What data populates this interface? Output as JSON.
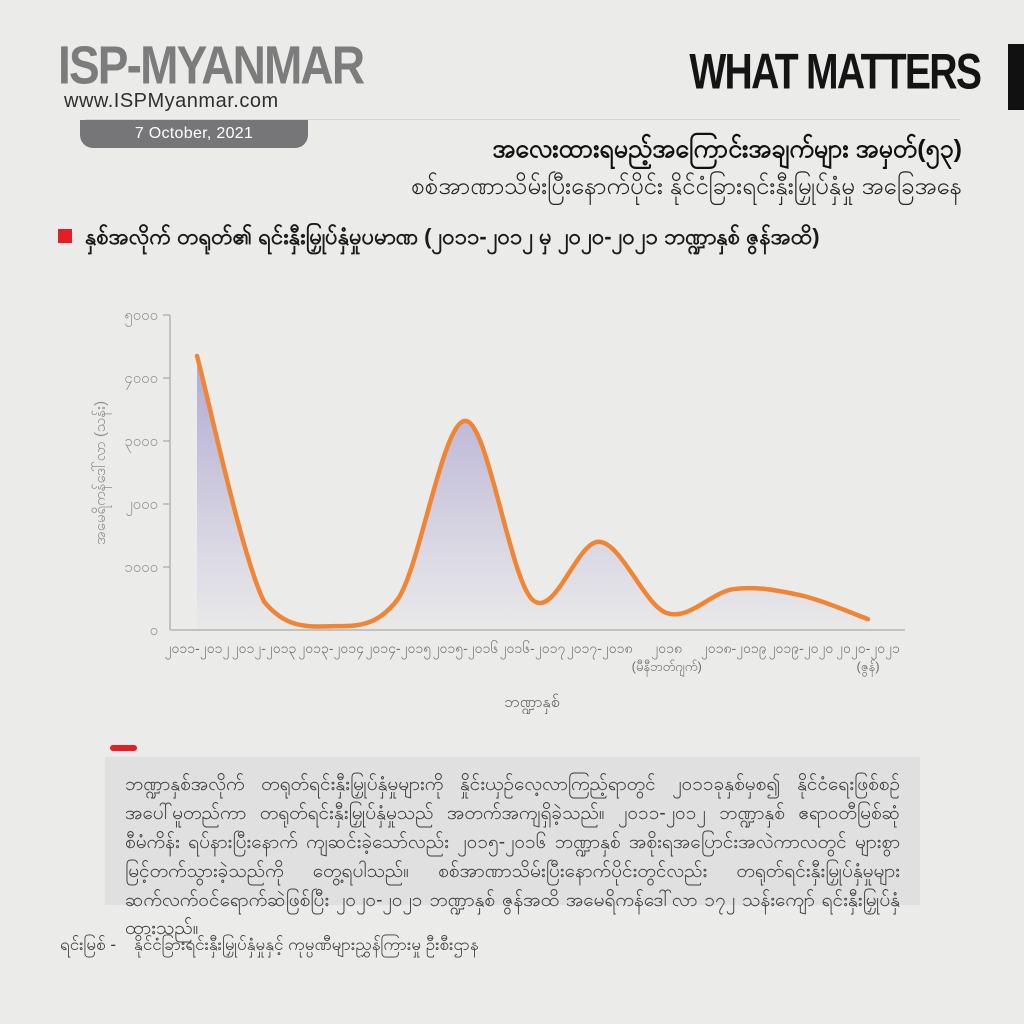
{
  "page": {
    "bg": "#ebebea",
    "accent_red": "#e31e24"
  },
  "header": {
    "logo": "ISP-MYANMAR",
    "website": "www.ISPMyanmar.com",
    "date_badge": "7 October, 2021",
    "brand_right": "WHAT MATTERS"
  },
  "title": {
    "line1": "အလေးထားရမည့်အကြောင်းအချက်များ အမှတ်(၅၃)",
    "line2": "စစ်အာဏာသိမ်းပြီးနောက်ပိုင်း နိုင်ငံခြားရင်းနှီးမြှုပ်နှံမှု အခြေအနေ"
  },
  "chart_heading": "နှစ်အလိုက် တရုတ်၏ ရင်းနှီးမြှုပ်နှံမှုပမာဏ (၂၀၁၁-၂၀၁၂ မှ ၂၀၂၀-၂၀၂၁ ဘဏ္ဍာနှစ် ဇွန်အထိ)",
  "chart_data": {
    "type": "area",
    "title": "နှစ်အလိုက် တရုတ်၏ ရင်းနှီးမြှုပ်နှံမှုပမာဏ (၂၀၁၁-၂၀၁၂ မှ ၂၀၂၀-၂၀၂၁ ဘဏ္ဍာနှစ် ဇွန်အထိ)",
    "xlabel": "ဘဏ္ဍာနှစ်",
    "ylabel": "အမေရိကန်ဒေါ်လာ (သန်း)",
    "categories": [
      "၂၀၁၁-၂၀၁၂",
      "၂၀၁၂-၂၀၁၃",
      "၂၀၁၃-၂၀၁၄",
      "၂၀၁၄-၂၀၁၅",
      "၂၀၁၅-၂၀၁၆",
      "၂၀၁၆-၂၀၁၇",
      "၂၀၁၇-၂၀၁၈",
      "၂၀၁၈",
      "၂၀၁၈-၂၀၁၉",
      "၂၀၁၉-၂၀၂၀",
      "၂၀၂၀-၂၀၂၁"
    ],
    "category_sublabels": [
      "",
      "",
      "",
      "",
      "",
      "",
      "",
      "(မီနီဘတ်ဂျက်)",
      "",
      "",
      "(ဇွန်)"
    ],
    "values": [
      4350,
      450,
      60,
      500,
      3320,
      480,
      1400,
      270,
      650,
      550,
      172
    ],
    "ylim": [
      0,
      5000
    ],
    "ytick_values": [
      0,
      1000,
      2000,
      3000,
      4000,
      5000
    ],
    "ytick_labels": [
      "၀",
      "၁၀၀၀",
      "၂၀၀၀",
      "၃၀၀၀",
      "၄၀၀၀",
      "၅၀၀၀"
    ],
    "grid": false,
    "legend": "none",
    "line_color": "#ef8535",
    "fill_color": "#a79ecf",
    "axis_color": "#b5b5b5",
    "tick_text_color": "#8f8f8f",
    "label_text_color": "#6f6f6f"
  },
  "body": {
    "paragraph": "ဘဏ္ဍာနှစ်အလိုက် တရုတ်ရင်းနှီးမြှုပ်နှံမှုများကို နှိုင်းယှဉ်လေ့လာကြည့်ရာတွင် ၂၀၁၁ခုနှစ်မှစ၍ နိုင်ငံရေးဖြစ်စဉ်အပေါ်မူတည်ကာ တရုတ်ရင်းနှီးမြှုပ်နှံမှုသည် အတက်အကျရှိခဲ့သည်။ ၂၀၁၁-၂၀၁၂ ဘဏ္ဍာနှစ် ဧရာဝတီမြစ်ဆုံစီမံကိန်း ရပ်နားပြီးနောက် ကျဆင်းခဲ့သော်လည်း ၂၀၁၅-၂၀၁၆ ဘဏ္ဍာနှစ် အစိုးရအပြောင်းအလဲကာလတွင် များစွာ မြင့်တက်သွားခဲ့သည်ကို တွေ့ရပါသည်။ စစ်အာဏာသိမ်းပြီးနောက်ပိုင်းတွင်လည်း တရုတ်ရင်းနှီးမြှုပ်နှံမှုများ ဆက်လက်ဝင်ရောက်ဆဲဖြစ်ပြီး ၂၀၂၀-၂၀၂၁ ဘဏ္ဍာနှစ် ဇွန်အထိ အမေရိကန်ဒေါ်လာ ၁၇၂ သန်းကျော် ရင်းနှီးမြှုပ်နှံထားသည်။"
  },
  "source": {
    "label": "ရင်းမြစ် -",
    "text": "နိုင်ငံခြားရင်းနှီးမြှုပ်နှံမှုနှင့် ကုမ္ပဏီများညွှန်ကြားမှု ဦးစီးဌာန"
  }
}
